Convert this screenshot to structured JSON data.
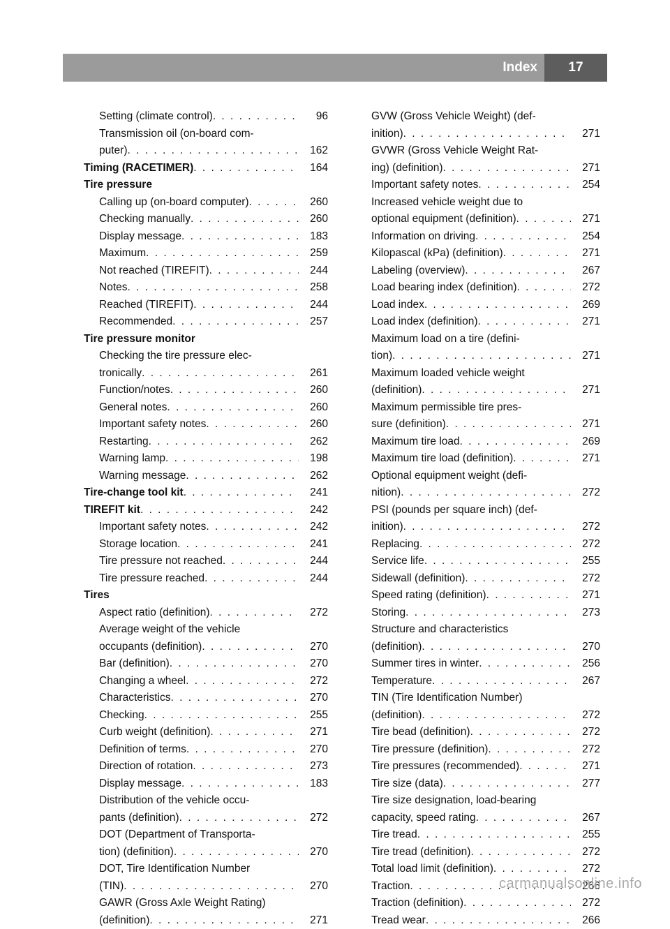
{
  "header": {
    "title": "Index",
    "page_number": "17"
  },
  "colors": {
    "header_gray": "#9b9b9b",
    "header_dark": "#5d5d5d",
    "text": "#101010",
    "footer": "#a9a9a9",
    "bg": "#ffffff"
  },
  "typography": {
    "body_fontsize": 15.5,
    "line_height": 24.5,
    "header_fontsize": 19,
    "footer_fontsize": 20
  },
  "footer": "carmanualsonline.info",
  "left_column": [
    {
      "label": "Setting (climate control)",
      "page": "96",
      "sub": true
    },
    {
      "label": "Transmission oil (on-board com-",
      "sub": true,
      "nowrap": true
    },
    {
      "label": "puter)",
      "page": "162",
      "sub": true
    },
    {
      "label": "Timing (RACETIMER)",
      "page": "164",
      "bold": true
    },
    {
      "label": "Tire pressure",
      "bold": true,
      "nodots": true
    },
    {
      "label": "Calling up (on-board computer)",
      "page": "260",
      "sub": true
    },
    {
      "label": "Checking manually",
      "page": "260",
      "sub": true
    },
    {
      "label": "Display message",
      "page": "183",
      "sub": true
    },
    {
      "label": "Maximum",
      "page": "259",
      "sub": true
    },
    {
      "label": "Not reached (TIREFIT)",
      "page": "244",
      "sub": true
    },
    {
      "label": "Notes",
      "page": "258",
      "sub": true
    },
    {
      "label": "Reached (TIREFIT)",
      "page": "244",
      "sub": true
    },
    {
      "label": "Recommended",
      "page": "257",
      "sub": true
    },
    {
      "label": "Tire pressure monitor",
      "bold": true,
      "nodots": true
    },
    {
      "label": "Checking the tire pressure elec-",
      "sub": true,
      "nowrap": true
    },
    {
      "label": "tronically",
      "page": "261",
      "sub": true
    },
    {
      "label": "Function/notes",
      "page": "260",
      "sub": true
    },
    {
      "label": "General notes",
      "page": "260",
      "sub": true
    },
    {
      "label": "Important safety notes",
      "page": "260",
      "sub": true
    },
    {
      "label": "Restarting",
      "page": "262",
      "sub": true
    },
    {
      "label": "Warning lamp",
      "page": "198",
      "sub": true
    },
    {
      "label": "Warning message",
      "page": "262",
      "sub": true
    },
    {
      "label": "Tire-change tool kit",
      "page": "241",
      "bold": true
    },
    {
      "label": "TIREFIT kit",
      "page": "242",
      "bold": true
    },
    {
      "label": "Important safety notes",
      "page": "242",
      "sub": true
    },
    {
      "label": "Storage location",
      "page": "241",
      "sub": true
    },
    {
      "label": "Tire pressure not reached",
      "page": "244",
      "sub": true
    },
    {
      "label": "Tire pressure reached",
      "page": "244",
      "sub": true
    },
    {
      "label": "Tires",
      "bold": true,
      "nodots": true
    },
    {
      "label": "Aspect ratio (definition)",
      "page": "272",
      "sub": true
    },
    {
      "label": "Average weight of the vehicle",
      "sub": true,
      "nowrap": true
    },
    {
      "label": "occupants (definition)",
      "page": "270",
      "sub": true
    },
    {
      "label": "Bar (definition)",
      "page": "270",
      "sub": true
    },
    {
      "label": "Changing a wheel",
      "page": "272",
      "sub": true
    },
    {
      "label": "Characteristics",
      "page": "270",
      "sub": true
    },
    {
      "label": "Checking",
      "page": "255",
      "sub": true
    },
    {
      "label": "Curb weight (definition)",
      "page": "271",
      "sub": true
    },
    {
      "label": "Definition of terms",
      "page": "270",
      "sub": true
    },
    {
      "label": "Direction of rotation",
      "page": "273",
      "sub": true
    },
    {
      "label": "Display message",
      "page": "183",
      "sub": true
    },
    {
      "label": "Distribution of the vehicle occu-",
      "sub": true,
      "nowrap": true
    },
    {
      "label": "pants (definition)",
      "page": "272",
      "sub": true
    },
    {
      "label": "DOT (Department of Transporta-",
      "sub": true,
      "nowrap": true
    },
    {
      "label": "tion) (definition)",
      "page": "270",
      "sub": true
    },
    {
      "label": "DOT, Tire Identification Number",
      "sub": true,
      "nowrap": true
    },
    {
      "label": "(TIN)",
      "page": "270",
      "sub": true
    },
    {
      "label": "GAWR (Gross Axle Weight Rating)",
      "sub": true,
      "nowrap": true
    },
    {
      "label": "(definition)",
      "page": "271",
      "sub": true
    }
  ],
  "right_column": [
    {
      "label": "GVW (Gross Vehicle Weight) (def-",
      "sub": true,
      "nowrap": true
    },
    {
      "label": "inition)",
      "page": "271",
      "sub": true
    },
    {
      "label": "GVWR (Gross Vehicle Weight Rat-",
      "sub": true,
      "nowrap": true
    },
    {
      "label": "ing) (definition)",
      "page": "271",
      "sub": true
    },
    {
      "label": "Important safety notes",
      "page": "254",
      "sub": true
    },
    {
      "label": "Increased vehicle weight due to",
      "sub": true,
      "nowrap": true
    },
    {
      "label": "optional equipment (definition)",
      "page": "271",
      "sub": true
    },
    {
      "label": "Information on driving",
      "page": "254",
      "sub": true
    },
    {
      "label": "Kilopascal (kPa) (definition)",
      "page": "271",
      "sub": true
    },
    {
      "label": "Labeling (overview)",
      "page": "267",
      "sub": true
    },
    {
      "label": "Load bearing index (definition)",
      "page": "272",
      "sub": true
    },
    {
      "label": "Load index",
      "page": "269",
      "sub": true
    },
    {
      "label": "Load index (definition)",
      "page": "271",
      "sub": true
    },
    {
      "label": "Maximum load on a tire (defini-",
      "sub": true,
      "nowrap": true
    },
    {
      "label": "tion)",
      "page": "271",
      "sub": true
    },
    {
      "label": "Maximum loaded vehicle weight",
      "sub": true,
      "nowrap": true
    },
    {
      "label": "(definition)",
      "page": "271",
      "sub": true
    },
    {
      "label": "Maximum permissible tire pres-",
      "sub": true,
      "nowrap": true
    },
    {
      "label": "sure (definition)",
      "page": "271",
      "sub": true
    },
    {
      "label": "Maximum tire load",
      "page": "269",
      "sub": true
    },
    {
      "label": "Maximum tire load (definition)",
      "page": "271",
      "sub": true
    },
    {
      "label": "Optional equipment weight (defi-",
      "sub": true,
      "nowrap": true
    },
    {
      "label": "nition)",
      "page": "272",
      "sub": true
    },
    {
      "label": "PSI (pounds per square inch) (def-",
      "sub": true,
      "nowrap": true
    },
    {
      "label": "inition)",
      "page": "272",
      "sub": true
    },
    {
      "label": "Replacing",
      "page": "272",
      "sub": true
    },
    {
      "label": "Service life",
      "page": "255",
      "sub": true
    },
    {
      "label": "Sidewall (definition)",
      "page": "272",
      "sub": true
    },
    {
      "label": "Speed rating (definition)",
      "page": "271",
      "sub": true
    },
    {
      "label": "Storing",
      "page": "273",
      "sub": true
    },
    {
      "label": "Structure and characteristics",
      "sub": true,
      "nowrap": true
    },
    {
      "label": "(definition)",
      "page": "270",
      "sub": true
    },
    {
      "label": "Summer tires in winter",
      "page": "256",
      "sub": true
    },
    {
      "label": "Temperature",
      "page": "267",
      "sub": true
    },
    {
      "label": "TIN (Tire Identification Number)",
      "sub": true,
      "nowrap": true
    },
    {
      "label": "(definition)",
      "page": "272",
      "sub": true
    },
    {
      "label": "Tire bead (definition)",
      "page": "272",
      "sub": true
    },
    {
      "label": "Tire pressure (definition)",
      "page": "272",
      "sub": true
    },
    {
      "label": "Tire pressures (recommended)",
      "page": "271",
      "sub": true
    },
    {
      "label": "Tire size (data)",
      "page": "277",
      "sub": true
    },
    {
      "label": "Tire size designation, load-bearing",
      "sub": true,
      "nowrap": true
    },
    {
      "label": "capacity, speed rating",
      "page": "267",
      "sub": true
    },
    {
      "label": "Tire tread",
      "page": "255",
      "sub": true
    },
    {
      "label": "Tire tread (definition)",
      "page": "272",
      "sub": true
    },
    {
      "label": "Total load limit (definition)",
      "page": "272",
      "sub": true
    },
    {
      "label": "Traction",
      "page": "266",
      "sub": true
    },
    {
      "label": "Traction (definition)",
      "page": "272",
      "sub": true
    },
    {
      "label": "Tread wear",
      "page": "266",
      "sub": true
    }
  ]
}
